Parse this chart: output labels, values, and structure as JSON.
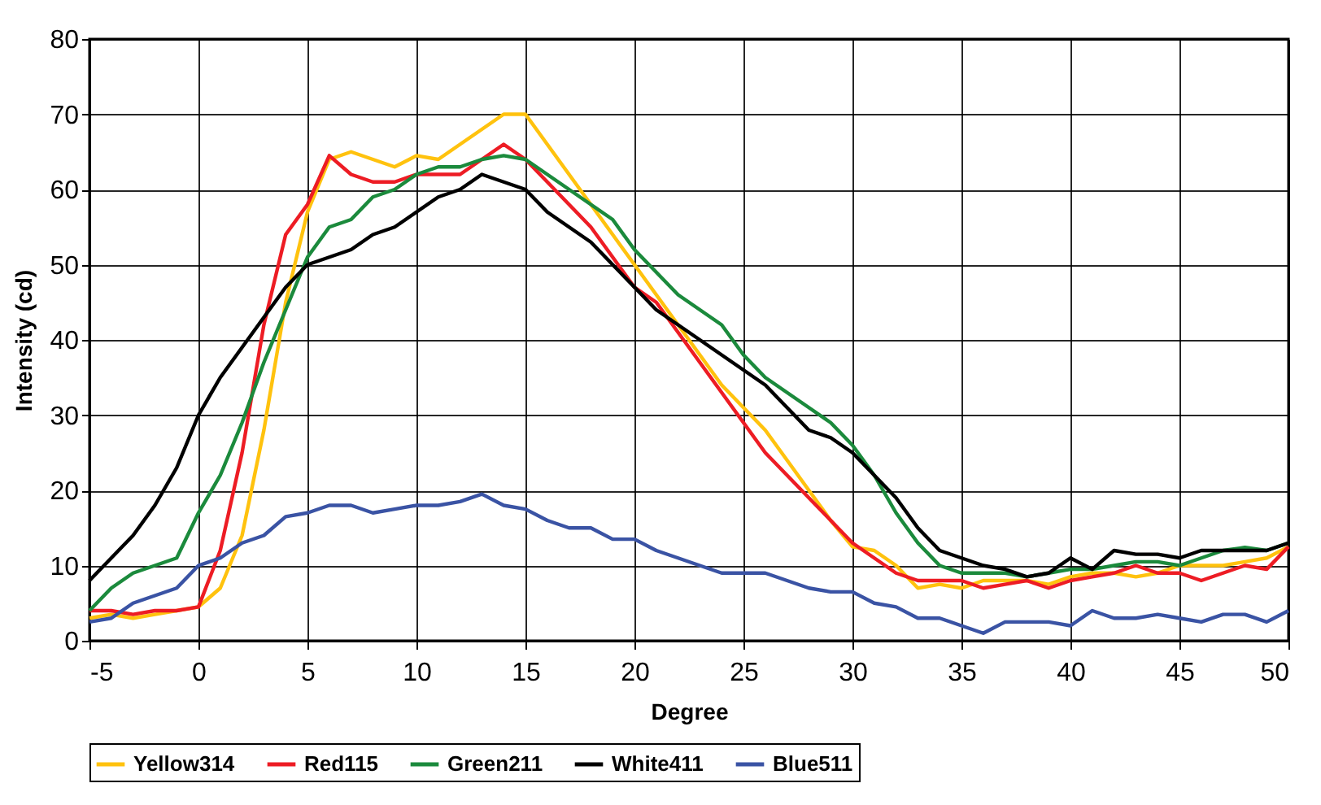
{
  "chart_data": {
    "type": "line",
    "xlabel": "Degree",
    "ylabel": "Intensity (cd)",
    "xlim": [
      -5,
      50
    ],
    "xticks": [
      -5,
      0,
      5,
      10,
      15,
      20,
      25,
      30,
      35,
      40,
      45,
      50
    ],
    "ylim": [
      0,
      80
    ],
    "yticks": [
      0,
      10,
      20,
      30,
      40,
      50,
      60,
      70,
      80
    ],
    "grid": true,
    "legend": "bottom",
    "marker": "none",
    "line_style": "solid",
    "x": [
      -5,
      -4,
      -3,
      -2,
      -1,
      0,
      1,
      2,
      3,
      4,
      5,
      6,
      7,
      8,
      9,
      10,
      11,
      12,
      13,
      14,
      15,
      16,
      17,
      18,
      19,
      20,
      21,
      22,
      23,
      24,
      25,
      26,
      27,
      28,
      29,
      30,
      31,
      32,
      33,
      34,
      35,
      36,
      37,
      38,
      39,
      40,
      41,
      42,
      43,
      44,
      45,
      46,
      47,
      48,
      49,
      50
    ],
    "series": [
      {
        "name": "Yellow314",
        "color": "#ffc20e",
        "values": [
          3,
          3.5,
          3,
          3.5,
          4,
          4.5,
          7,
          14,
          28,
          45,
          57,
          64,
          65,
          64,
          63,
          64.5,
          64,
          66,
          68,
          70,
          70,
          66,
          62,
          58,
          54,
          50,
          46,
          42,
          38,
          34,
          31,
          28,
          24,
          20,
          16,
          12.5,
          12,
          10,
          7,
          7.5,
          7,
          8,
          8,
          8,
          7.5,
          8.5,
          9,
          9,
          8.5,
          9,
          10,
          10,
          10,
          10.5,
          11,
          12.5
        ]
      },
      {
        "name": "Red115",
        "color": "#ed1c24",
        "values": [
          4,
          4,
          3.5,
          4,
          4,
          4.5,
          12,
          25,
          42,
          54,
          58,
          64.5,
          62,
          61,
          61,
          62,
          62,
          62,
          64,
          66,
          64,
          61,
          58,
          55,
          51,
          47,
          45,
          41,
          37,
          33,
          29,
          25,
          22,
          19,
          16,
          13,
          11,
          9,
          8,
          8,
          8,
          7,
          7.5,
          8,
          7,
          8,
          8.5,
          9,
          10,
          9,
          9,
          8,
          9,
          10,
          9.5,
          12.5
        ]
      },
      {
        "name": "Green211",
        "color": "#1b8a3c",
        "values": [
          4,
          7,
          9,
          10,
          11,
          17,
          22,
          29,
          37,
          44,
          51,
          55,
          56,
          59,
          60,
          62,
          63,
          63,
          64,
          64.5,
          64,
          62,
          60,
          58,
          56,
          52,
          49,
          46,
          44,
          42,
          38,
          35,
          33,
          31,
          29,
          26,
          22,
          17,
          13,
          10,
          9,
          9,
          9,
          8.5,
          9,
          9.5,
          9.5,
          10,
          10.5,
          10.5,
          10,
          11,
          12,
          12.4,
          12,
          13
        ]
      },
      {
        "name": "White411",
        "color": "#000000",
        "values": [
          8,
          11,
          14,
          18,
          23,
          30,
          35,
          39,
          43,
          47,
          50,
          51,
          52,
          54,
          55,
          57,
          59,
          60,
          62,
          61,
          60,
          57,
          55,
          53,
          50,
          47,
          44,
          42,
          40,
          38,
          36,
          34,
          31,
          28,
          27,
          25,
          22,
          19,
          15,
          12,
          11,
          10,
          9.5,
          8.5,
          9,
          11,
          9.5,
          12,
          11.5,
          11.5,
          11,
          12,
          12,
          12,
          12,
          13
        ]
      },
      {
        "name": "Blue511",
        "color": "#3a53a4",
        "values": [
          2.5,
          3,
          5,
          6,
          7,
          10,
          11,
          13,
          14,
          16.5,
          17,
          18,
          18,
          17,
          17.5,
          18,
          18,
          18.5,
          19.5,
          18,
          17.5,
          16,
          15,
          15,
          13.5,
          13.5,
          12,
          11,
          10,
          9,
          9,
          9,
          8,
          7,
          6.5,
          6.5,
          5,
          4.5,
          3,
          3,
          2,
          1,
          2.5,
          2.5,
          2.5,
          2,
          4,
          3,
          3,
          3.5,
          3,
          2.5,
          3.5,
          3.5,
          2.5,
          4
        ]
      }
    ]
  }
}
